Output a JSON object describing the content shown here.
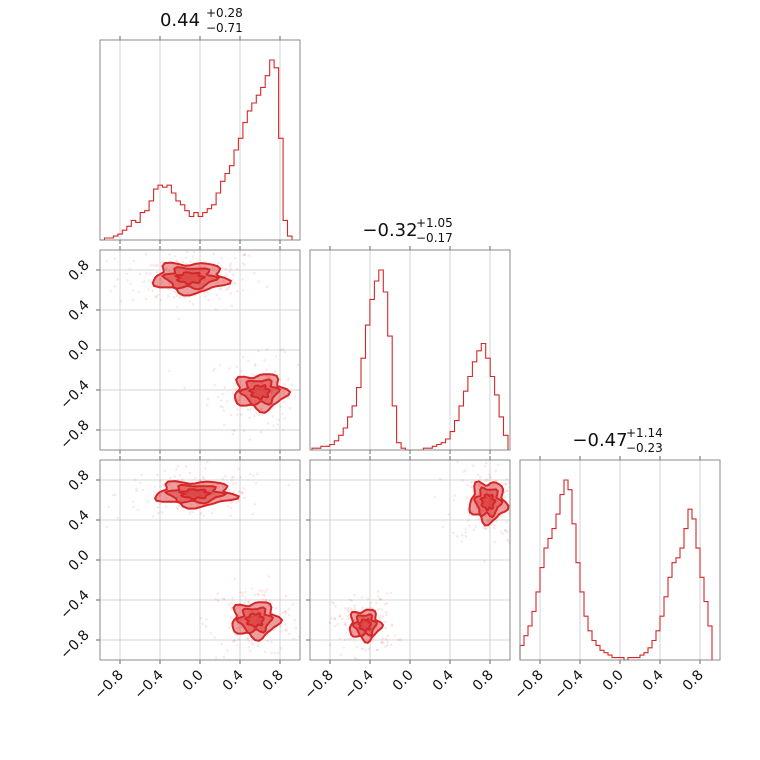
{
  "colors": {
    "series": "#d62728",
    "grid": "#c8c8c8",
    "frame": "#7f7f7f"
  },
  "titles": [
    {
      "value": "0.44",
      "plus": "+0.28",
      "minus": "−0.71"
    },
    {
      "value": "−0.32",
      "plus": "+1.05",
      "minus": "−0.17"
    },
    {
      "value": "−0.47",
      "plus": "+1.14",
      "minus": "−0.23"
    }
  ],
  "chart_data": {
    "type": "corner",
    "parameters": 3,
    "range": [
      -1.0,
      1.0
    ],
    "grid": true,
    "x_ticks": [
      -0.8,
      -0.4,
      0.0,
      0.4,
      0.8
    ],
    "x_tick_labels": [
      "−0.8",
      "−0.4",
      "0.0",
      "0.4",
      "0.8"
    ],
    "y_ticks": [
      -0.8,
      -0.4,
      0.0,
      0.4,
      0.8
    ],
    "y_tick_labels": [
      "−0.8",
      "−0.4",
      "0.0",
      "0.4",
      "0.8"
    ],
    "histograms": [
      {
        "param": 0,
        "x_min": -1.0,
        "x_max": 0.92,
        "counts": [
          0,
          1,
          1,
          2,
          3,
          5,
          7,
          10,
          9,
          14,
          15,
          20,
          26,
          28,
          27,
          28,
          24,
          20,
          18,
          15,
          12,
          14,
          12,
          14,
          16,
          18,
          24,
          30,
          34,
          38,
          46,
          52,
          60,
          66,
          70,
          74,
          78,
          84,
          92,
          88,
          52,
          10,
          2
        ]
      },
      {
        "param": 1,
        "x_min": -0.98,
        "x_max": 0.98,
        "counts": [
          1,
          1,
          2,
          2,
          3,
          5,
          8,
          12,
          18,
          24,
          34,
          50,
          68,
          82,
          92,
          98,
          86,
          62,
          24,
          4,
          1,
          0,
          0,
          0,
          0,
          1,
          1,
          2,
          3,
          4,
          6,
          10,
          16,
          24,
          32,
          40,
          48,
          54,
          58,
          50,
          40,
          30,
          18,
          8
        ]
      },
      {
        "param": 2,
        "x_min": -1.0,
        "x_max": 0.92,
        "counts": [
          6,
          10,
          14,
          20,
          28,
          38,
          46,
          50,
          54,
          60,
          68,
          74,
          70,
          56,
          40,
          28,
          18,
          12,
          8,
          6,
          4,
          3,
          2,
          1,
          1,
          1,
          0,
          1,
          1,
          1,
          2,
          3,
          5,
          8,
          12,
          18,
          26,
          34,
          40,
          42,
          46,
          54,
          62,
          58,
          46,
          34,
          24,
          14
        ]
      }
    ],
    "scatter_2d": [
      {
        "x_param": 0,
        "y_param": 1,
        "modes": [
          {
            "cx": -0.1,
            "cy": 0.72,
            "sx": 0.28,
            "sy": 0.12
          },
          {
            "cx": 0.6,
            "cy": -0.42,
            "sx": 0.2,
            "sy": 0.14
          }
        ]
      },
      {
        "x_param": 0,
        "y_param": 2,
        "modes": [
          {
            "cx": -0.05,
            "cy": 0.66,
            "sx": 0.3,
            "sy": 0.1
          },
          {
            "cx": 0.55,
            "cy": -0.6,
            "sx": 0.18,
            "sy": 0.14
          }
        ]
      },
      {
        "x_param": 1,
        "y_param": 2,
        "modes": [
          {
            "cx": 0.78,
            "cy": 0.58,
            "sx": 0.14,
            "sy": 0.16
          },
          {
            "cx": -0.45,
            "cy": -0.65,
            "sx": 0.12,
            "sy": 0.12
          }
        ]
      }
    ]
  }
}
